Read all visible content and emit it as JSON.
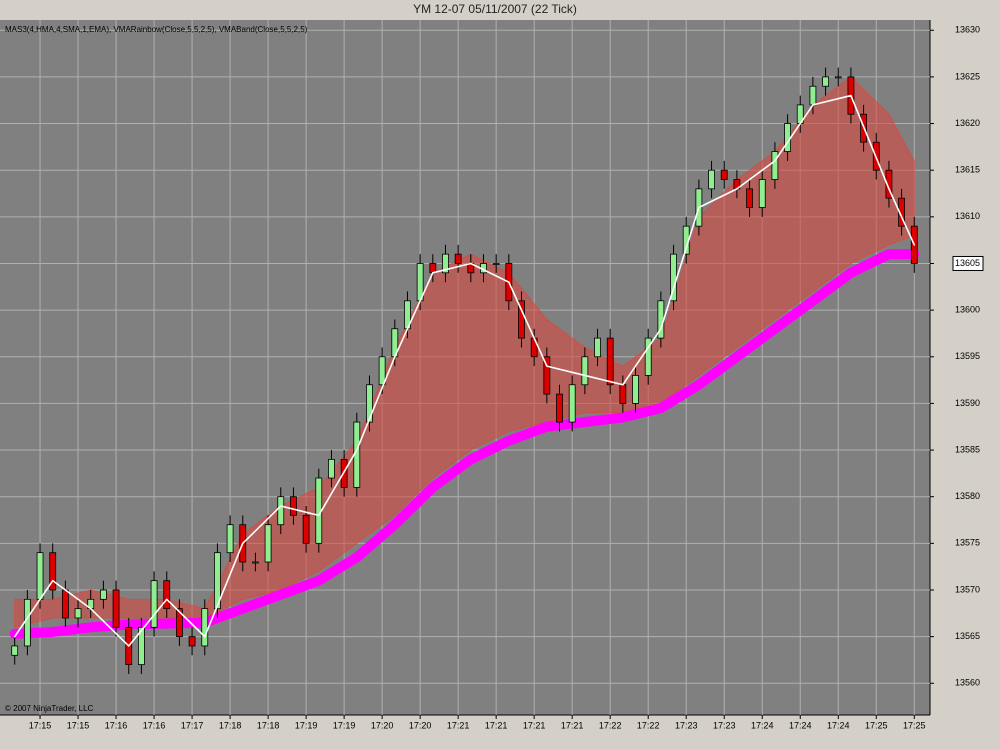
{
  "chart_data": {
    "type": "candlestick",
    "title": "YM 12-07  05/11/2007  (22 Tick)",
    "indicator_label": "MAS3(4,HMA,4,SMA,1,EMA), VMARainbow(Close,5,5,2,5), VMABand(Close,5,5,2,5)",
    "copyright": "© 2007 NinjaTrader, LLC",
    "categories": [
      null,
      null,
      "17:15",
      null,
      null,
      "17:15",
      null,
      null,
      "17:16",
      null,
      null,
      "17:16",
      null,
      null,
      "17:17",
      null,
      null,
      "17:18",
      null,
      null,
      "17:18",
      null,
      null,
      "17:19",
      null,
      null,
      "17:19",
      null,
      null,
      "17:20",
      null,
      null,
      "17:20",
      null,
      null,
      "17:21",
      null,
      null,
      "17:21",
      null,
      null,
      "17:21",
      null,
      null,
      "17:21",
      null,
      null,
      "17:22",
      null,
      null,
      "17:22",
      null,
      null,
      "17:23",
      null,
      null,
      "17:23",
      null,
      null,
      "17:24",
      null,
      null,
      "17:24",
      null,
      null,
      "17:24",
      null,
      null,
      "17:25",
      null,
      null,
      "17:25"
    ],
    "open": [
      13563,
      13564,
      13569,
      13574,
      13570,
      13567,
      13568,
      13569,
      13570,
      13566,
      13562,
      13566,
      13571,
      13568,
      13565,
      13564,
      13568,
      13574,
      13577,
      13573,
      13573,
      13577,
      13580,
      13578,
      13575,
      13582,
      13584,
      13581,
      13588,
      13592,
      13595,
      13598,
      13601,
      13605,
      13604,
      13606,
      13605,
      13604,
      13605,
      13605,
      13601,
      13597,
      13595,
      13591,
      13588,
      13592,
      13595,
      13597,
      13592,
      13590,
      13593,
      13597,
      13601,
      13606,
      13609,
      13613,
      13615,
      13614,
      13613,
      13611,
      13614,
      13617,
      13620,
      13622,
      13624,
      13625,
      13625,
      13621,
      13618,
      13615,
      13612,
      13609
    ],
    "high": [
      13565,
      13570,
      13575,
      13575,
      13571,
      13569,
      13570,
      13571,
      13571,
      13567,
      13567,
      13572,
      13572,
      13569,
      13566,
      13569,
      13575,
      13578,
      13578,
      13574,
      13578,
      13581,
      13581,
      13579,
      13583,
      13585,
      13585,
      13589,
      13593,
      13596,
      13599,
      13602,
      13606,
      13606,
      13607,
      13607,
      13606,
      13606,
      13606,
      13606,
      13602,
      13598,
      13596,
      13592,
      13593,
      13596,
      13598,
      13598,
      13593,
      13594,
      13598,
      13602,
      13607,
      13610,
      13614,
      13616,
      13616,
      13615,
      13614,
      13615,
      13618,
      13621,
      13623,
      13625,
      13626,
      13626,
      13626,
      13622,
      13619,
      13616,
      13613,
      13610
    ],
    "low": [
      13562,
      13563,
      13568,
      13569,
      13566,
      13566,
      13567,
      13568,
      13565,
      13561,
      13561,
      13565,
      13567,
      13564,
      13563,
      13563,
      13567,
      13573,
      13572,
      13572,
      13572,
      13576,
      13577,
      13574,
      13574,
      13581,
      13580,
      13580,
      13587,
      13591,
      13594,
      13597,
      13600,
      13603,
      13603,
      13604,
      13603,
      13603,
      13604,
      13600,
      13596,
      13594,
      13590,
      13587,
      13587,
      13591,
      13594,
      13591,
      13589,
      13589,
      13592,
      13596,
      13600,
      13605,
      13608,
      13612,
      13613,
      13612,
      13610,
      13610,
      13613,
      13616,
      13619,
      13621,
      13623,
      13624,
      13620,
      13617,
      13614,
      13611,
      13608,
      13604
    ],
    "close": [
      13564,
      13569,
      13574,
      13570,
      13567,
      13568,
      13569,
      13570,
      13566,
      13562,
      13566,
      13571,
      13568,
      13565,
      13564,
      13568,
      13574,
      13577,
      13573,
      13573,
      13577,
      13580,
      13578,
      13575,
      13582,
      13584,
      13581,
      13588,
      13592,
      13595,
      13598,
      13601,
      13605,
      13604,
      13606,
      13605,
      13604,
      13605,
      13605,
      13601,
      13597,
      13595,
      13591,
      13588,
      13592,
      13595,
      13597,
      13592,
      13590,
      13593,
      13597,
      13601,
      13606,
      13609,
      13613,
      13615,
      13614,
      13613,
      13611,
      13614,
      13617,
      13620,
      13622,
      13624,
      13625,
      13625,
      13621,
      13618,
      13615,
      13612,
      13609,
      13605
    ],
    "up_color": "#90ee90",
    "down_color": "#dd0000",
    "band": {
      "index": [
        0,
        3,
        6,
        9,
        12,
        15,
        18,
        21,
        24,
        27,
        30,
        33,
        36,
        39,
        42,
        45,
        48,
        51,
        54,
        57,
        60,
        63,
        66,
        69,
        71
      ],
      "upper": [
        13569,
        13569,
        13570,
        13569,
        13569,
        13568,
        13576,
        13579,
        13581,
        13586,
        13596,
        13604,
        13606,
        13604,
        13599,
        13596,
        13594,
        13597,
        13610,
        13614,
        13617,
        13622,
        13625,
        13621,
        13616
      ],
      "lower": [
        13566,
        13567,
        13567,
        13567,
        13567,
        13567,
        13569,
        13570,
        13572,
        13575,
        13578,
        13582,
        13585,
        13587,
        13588,
        13589,
        13589,
        13590,
        13593,
        13596,
        13599,
        13602,
        13605,
        13607,
        13608
      ],
      "color": "#e0443c"
    },
    "lines": [
      {
        "index": [
          0,
          3,
          6,
          9,
          12,
          15,
          18,
          21,
          24,
          27,
          30,
          33,
          36,
          39,
          42,
          45,
          48,
          51,
          54,
          57,
          60,
          63,
          66,
          69,
          71
        ],
        "values": [
          13565.3,
          13565.5,
          13566,
          13566.3,
          13566.4,
          13566.5,
          13568,
          13569.5,
          13571,
          13573.5,
          13577,
          13581,
          13584,
          13586,
          13587.5,
          13588,
          13588.5,
          13589.5,
          13592,
          13595,
          13598,
          13601,
          13604,
          13606,
          13606
        ],
        "color": "#ff00ff",
        "width": 10
      },
      {
        "index": [
          0,
          3,
          6,
          9,
          12,
          15,
          18,
          21,
          24,
          27,
          30,
          33,
          36,
          39,
          42,
          45,
          48,
          51,
          54,
          57,
          60,
          63,
          66,
          69,
          71
        ],
        "values": [
          13565,
          13571,
          13568,
          13564,
          13569,
          13565,
          13575,
          13579,
          13578,
          13585,
          13595,
          13604,
          13605,
          13603,
          13594,
          13593,
          13592,
          13598,
          13611,
          13613,
          13616,
          13622,
          13623,
          13613,
          13607
        ],
        "color": "#ffffff",
        "width": 1.6
      }
    ],
    "last_price": 13605,
    "ylim": [
      13556.6,
      13631.1
    ],
    "yticks": [
      13560,
      13565,
      13570,
      13575,
      13580,
      13585,
      13590,
      13595,
      13600,
      13605,
      13610,
      13615,
      13620,
      13625,
      13630
    ],
    "grid": true
  }
}
